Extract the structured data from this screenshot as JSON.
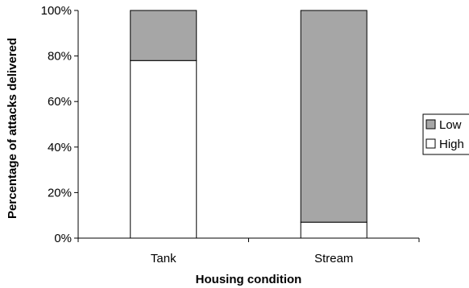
{
  "chart_data": {
    "type": "bar",
    "stacked": true,
    "percent_stacked": true,
    "categories": [
      "Tank",
      "Stream"
    ],
    "series": [
      {
        "name": "High",
        "values": [
          78,
          7
        ],
        "color": "#ffffff"
      },
      {
        "name": "Low",
        "values": [
          22,
          93
        ],
        "color": "#a6a6a6"
      }
    ],
    "xlabel": "Housing condition",
    "ylabel": "Percentage of attacks delivered",
    "ylim": [
      0,
      100
    ],
    "yticks": [
      "0%",
      "20%",
      "40%",
      "60%",
      "80%",
      "100%"
    ],
    "grid": false,
    "legend": {
      "placement": "right",
      "entries": [
        "Low",
        "High"
      ]
    }
  }
}
